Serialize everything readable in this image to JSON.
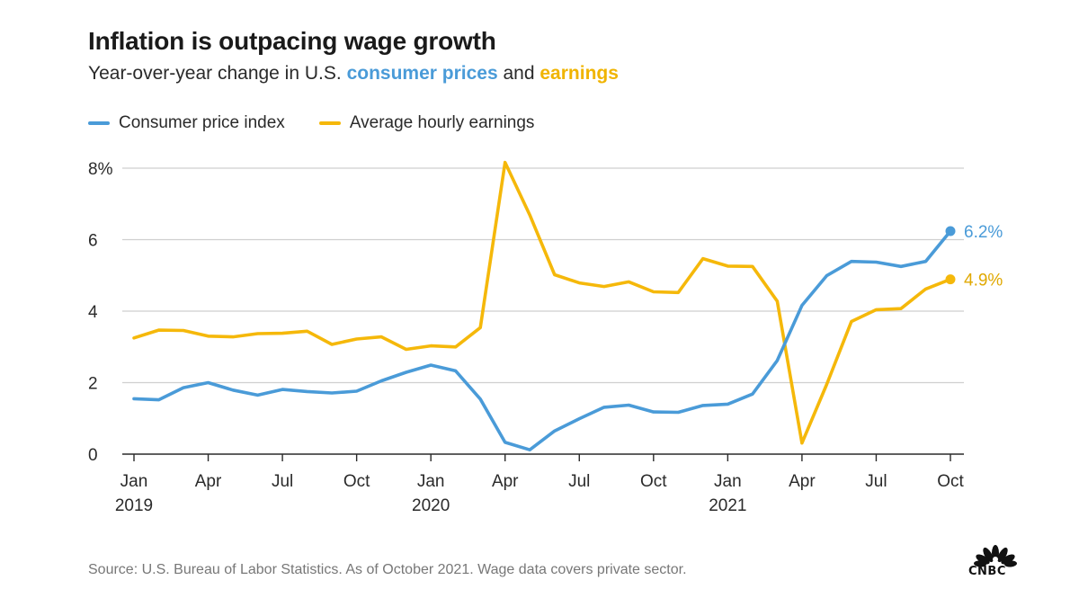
{
  "header": {
    "title": "Inflation is outpacing wage growth",
    "subtitle_prefix": "Year-over-year change in U.S.",
    "subtitle_cpi": "consumer prices",
    "subtitle_and": "and",
    "subtitle_earn": "earnings"
  },
  "colors": {
    "cpi": "#4a9bd8",
    "earnings": "#f5b80a",
    "grid": "#cfcfcf",
    "axis": "#2a2a2a",
    "label_cpi": "#4a9bd8",
    "label_earn": "#e0a800"
  },
  "footer": {
    "source": "Source: U.S. Bureau of Labor Statistics. As of October 2021. Wage data covers private sector."
  },
  "logo": {
    "text": "CNBC"
  },
  "chart_data": {
    "type": "line",
    "title": "Inflation is outpacing wage growth",
    "xlabel": "",
    "ylabel": "",
    "ylim": [
      0,
      8
    ],
    "yticks": [
      0,
      2,
      4,
      6,
      8
    ],
    "ytick_labels": [
      "0",
      "2",
      "4",
      "6",
      "8%"
    ],
    "x": [
      "Jan 2019",
      "Feb 2019",
      "Mar 2019",
      "Apr 2019",
      "May 2019",
      "Jun 2019",
      "Jul 2019",
      "Aug 2019",
      "Sep 2019",
      "Oct 2019",
      "Nov 2019",
      "Dec 2019",
      "Jan 2020",
      "Feb 2020",
      "Mar 2020",
      "Apr 2020",
      "May 2020",
      "Jun 2020",
      "Jul 2020",
      "Aug 2020",
      "Sep 2020",
      "Oct 2020",
      "Nov 2020",
      "Dec 2020",
      "Jan 2021",
      "Feb 2021",
      "Mar 2021",
      "Apr 2021",
      "May 2021",
      "Jun 2021",
      "Jul 2021",
      "Aug 2021",
      "Sep 2021",
      "Oct 2021"
    ],
    "xticks": [
      {
        "index": 0,
        "label": "Jan",
        "year": "2019"
      },
      {
        "index": 3,
        "label": "Apr",
        "year": ""
      },
      {
        "index": 6,
        "label": "Jul",
        "year": ""
      },
      {
        "index": 9,
        "label": "Oct",
        "year": ""
      },
      {
        "index": 12,
        "label": "Jan",
        "year": "2020"
      },
      {
        "index": 15,
        "label": "Apr",
        "year": ""
      },
      {
        "index": 18,
        "label": "Jul",
        "year": ""
      },
      {
        "index": 21,
        "label": "Oct",
        "year": ""
      },
      {
        "index": 24,
        "label": "Jan",
        "year": "2021"
      },
      {
        "index": 27,
        "label": "Apr",
        "year": ""
      },
      {
        "index": 30,
        "label": "Jul",
        "year": ""
      },
      {
        "index": 33,
        "label": "Oct",
        "year": ""
      }
    ],
    "series": [
      {
        "name": "Consumer price index",
        "key": "cpi",
        "values": [
          1.55,
          1.52,
          1.86,
          2.0,
          1.79,
          1.65,
          1.81,
          1.75,
          1.71,
          1.76,
          2.05,
          2.29,
          2.49,
          2.33,
          1.54,
          0.33,
          0.12,
          0.65,
          0.99,
          1.31,
          1.37,
          1.18,
          1.17,
          1.36,
          1.4,
          1.68,
          2.62,
          4.16,
          4.99,
          5.39,
          5.37,
          5.25,
          5.39,
          6.24
        ],
        "end_label": "6.2%"
      },
      {
        "name": "Average hourly earnings",
        "key": "earnings",
        "values": [
          3.25,
          3.47,
          3.46,
          3.3,
          3.28,
          3.37,
          3.38,
          3.44,
          3.07,
          3.22,
          3.28,
          2.93,
          3.03,
          3.0,
          3.54,
          8.16,
          6.69,
          5.02,
          4.79,
          4.69,
          4.82,
          4.54,
          4.52,
          5.47,
          5.26,
          5.25,
          4.28,
          0.31,
          1.95,
          3.71,
          4.04,
          4.07,
          4.62,
          4.89
        ],
        "end_label": "4.9%"
      }
    ],
    "legend_position": "top-left",
    "grid": true
  }
}
